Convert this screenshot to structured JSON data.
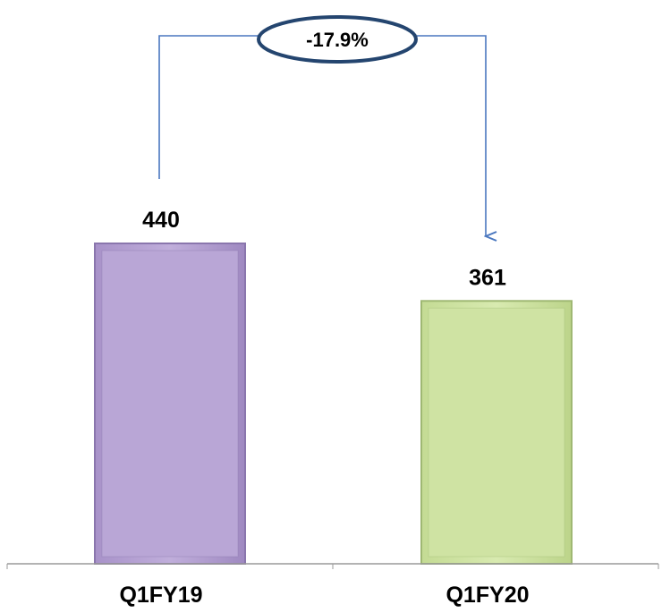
{
  "chart_data": {
    "type": "bar",
    "categories": [
      "Q1FY19",
      "Q1FY20"
    ],
    "values": [
      440,
      361
    ],
    "data_labels": [
      "440",
      "361"
    ],
    "ylim": [
      0,
      440
    ],
    "grid": false,
    "legend": "none",
    "annotation": {
      "text": "-17.9%",
      "from_category": "Q1FY19",
      "to_category": "Q1FY20"
    },
    "colors": {
      "bars": [
        "#b9a6d6",
        "#cfe3a3"
      ],
      "bar_borders": [
        "#8a76ad",
        "#9fb873"
      ],
      "arrow": "#4a77bf",
      "ellipse_stroke": "#24456f",
      "axis": "#9a9a9a"
    }
  }
}
